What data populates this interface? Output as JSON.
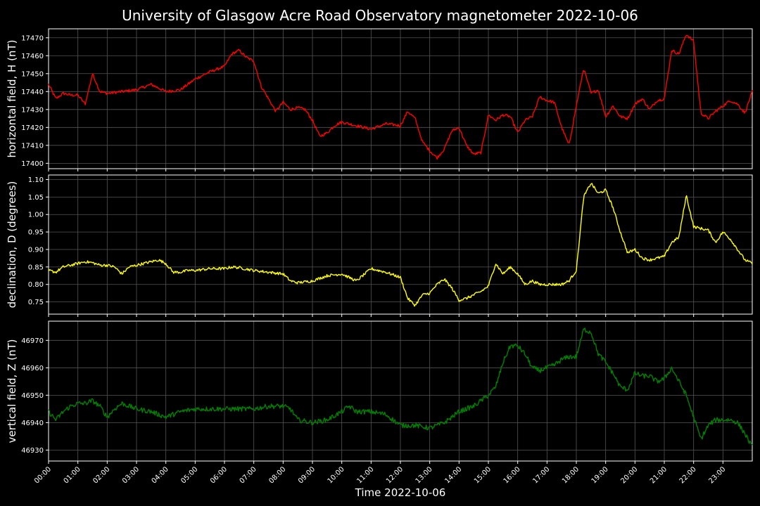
{
  "chart_data": {
    "type": "line",
    "title": "University of Glasgow Acre Road Observatory magnetometer 2022-10-06",
    "xlabel": "Time 2022-10-06",
    "x_ticks": [
      "00:00",
      "01:00",
      "02:00",
      "03:00",
      "04:00",
      "05:00",
      "06:00",
      "07:00",
      "08:00",
      "09:00",
      "10:00",
      "11:00",
      "12:00",
      "13:00",
      "14:00",
      "15:00",
      "16:00",
      "17:00",
      "18:00",
      "19:00",
      "20:00",
      "21:00",
      "22:00",
      "23:00"
    ],
    "xlim_hours": [
      0,
      24
    ],
    "grid": true,
    "panels": [
      {
        "ylabel": "horizontal field, H (nT)",
        "color": "#ff0000",
        "ylim": [
          17397,
          17475
        ],
        "y_ticks": [
          17400,
          17410,
          17420,
          17430,
          17440,
          17450,
          17460,
          17470
        ],
        "noise": 0.8,
        "series": {
          "x_hours": [
            0,
            0.25,
            0.5,
            0.75,
            1.0,
            1.25,
            1.5,
            1.75,
            2.0,
            2.5,
            3.0,
            3.5,
            4.0,
            4.5,
            5.0,
            5.5,
            6.0,
            6.25,
            6.5,
            6.75,
            7.0,
            7.25,
            7.5,
            7.75,
            8.0,
            8.25,
            8.5,
            8.75,
            9.0,
            9.25,
            9.5,
            9.75,
            10.0,
            10.5,
            11.0,
            11.5,
            12.0,
            12.25,
            12.5,
            12.75,
            13.0,
            13.25,
            13.5,
            13.75,
            14.0,
            14.25,
            14.5,
            14.75,
            15.0,
            15.25,
            15.5,
            15.75,
            16.0,
            16.25,
            16.5,
            16.75,
            17.0,
            17.25,
            17.5,
            17.75,
            18.0,
            18.25,
            18.5,
            18.75,
            19.0,
            19.25,
            19.5,
            19.75,
            20.0,
            20.25,
            20.5,
            20.75,
            21.0,
            21.25,
            21.5,
            21.75,
            22.0,
            22.25,
            22.5,
            22.75,
            23.0,
            23.25,
            23.5,
            23.75,
            24.0
          ],
          "values": [
            17444,
            17436,
            17439,
            17438,
            17438,
            17433,
            17450,
            17440,
            17439,
            17440,
            17441,
            17444,
            17440,
            17441,
            17447,
            17451,
            17454,
            17461,
            17463,
            17459,
            17457,
            17443,
            17436,
            17429,
            17434,
            17430,
            17431,
            17430,
            17424,
            17415,
            17417,
            17421,
            17423,
            17421,
            17419,
            17422,
            17421,
            17429,
            17425,
            17412,
            17407,
            17403,
            17408,
            17418,
            17420,
            17410,
            17405,
            17406,
            17427,
            17424,
            17427,
            17426,
            17417,
            17424,
            17426,
            17437,
            17435,
            17434,
            17420,
            17410,
            17432,
            17453,
            17439,
            17441,
            17426,
            17432,
            17426,
            17425,
            17433,
            17436,
            17430,
            17435,
            17436,
            17463,
            17461,
            17472,
            17468,
            17428,
            17425,
            17429,
            17432,
            17435,
            17433,
            17428,
            17440
          ]
        }
      },
      {
        "ylabel": "declination, D (degrees)",
        "color": "#ffff00",
        "ylim": [
          0.715,
          1.113
        ],
        "y_ticks": [
          "0.75",
          "0.80",
          "0.85",
          "0.90",
          "0.95",
          "1.00",
          "1.05",
          "1.10"
        ],
        "noise": 0.004,
        "series": {
          "x_hours": [
            0,
            0.25,
            0.5,
            0.75,
            1.0,
            1.25,
            1.5,
            1.75,
            2.0,
            2.25,
            2.5,
            2.75,
            3.0,
            3.25,
            3.5,
            3.75,
            4.0,
            4.25,
            4.5,
            4.75,
            5.0,
            5.5,
            6.0,
            6.25,
            6.5,
            7.0,
            7.5,
            8.0,
            8.25,
            8.5,
            9.0,
            9.5,
            10.0,
            10.5,
            11.0,
            11.25,
            11.5,
            12.0,
            12.25,
            12.5,
            12.75,
            13.0,
            13.25,
            13.5,
            13.75,
            14.0,
            14.25,
            14.5,
            14.75,
            15.0,
            15.25,
            15.5,
            15.75,
            16.0,
            16.25,
            16.5,
            16.75,
            17.0,
            17.5,
            17.75,
            18.0,
            18.25,
            18.5,
            18.75,
            19.0,
            19.25,
            19.5,
            19.75,
            20.0,
            20.25,
            20.5,
            20.75,
            21.0,
            21.25,
            21.5,
            21.75,
            22.0,
            22.25,
            22.5,
            22.75,
            23.0,
            23.25,
            23.5,
            23.75,
            24.0
          ],
          "values": [
            0.84,
            0.835,
            0.85,
            0.855,
            0.86,
            0.865,
            0.862,
            0.855,
            0.855,
            0.85,
            0.83,
            0.85,
            0.855,
            0.86,
            0.865,
            0.87,
            0.86,
            0.835,
            0.835,
            0.84,
            0.84,
            0.845,
            0.845,
            0.85,
            0.848,
            0.84,
            0.835,
            0.83,
            0.81,
            0.805,
            0.81,
            0.825,
            0.83,
            0.81,
            0.845,
            0.84,
            0.835,
            0.82,
            0.76,
            0.74,
            0.77,
            0.775,
            0.8,
            0.815,
            0.79,
            0.755,
            0.76,
            0.77,
            0.78,
            0.795,
            0.86,
            0.83,
            0.85,
            0.83,
            0.8,
            0.81,
            0.8,
            0.8,
            0.8,
            0.81,
            0.84,
            1.05,
            1.09,
            1.06,
            1.07,
            1.02,
            0.95,
            0.89,
            0.9,
            0.875,
            0.87,
            0.875,
            0.88,
            0.92,
            0.935,
            1.055,
            0.965,
            0.96,
            0.955,
            0.92,
            0.95,
            0.93,
            0.9,
            0.87,
            0.86
          ]
        }
      },
      {
        "ylabel": "vertical field, Z (nT)",
        "color": "#008000",
        "ylim": [
          46926,
          46977
        ],
        "y_ticks": [
          46930,
          46940,
          46950,
          46960,
          46970
        ],
        "noise": 0.9,
        "series": {
          "x_hours": [
            0,
            0.25,
            0.5,
            0.75,
            1.0,
            1.25,
            1.5,
            1.75,
            2.0,
            2.25,
            2.5,
            2.75,
            3.0,
            3.5,
            4.0,
            4.25,
            4.5,
            5.0,
            5.5,
            6.0,
            6.5,
            7.0,
            7.5,
            8.0,
            8.25,
            8.5,
            9.0,
            9.5,
            10.0,
            10.25,
            10.5,
            11.0,
            11.5,
            12.0,
            12.5,
            13.0,
            13.5,
            14.0,
            14.5,
            15.0,
            15.25,
            15.5,
            15.75,
            16.0,
            16.25,
            16.5,
            16.75,
            17.0,
            17.25,
            17.5,
            17.75,
            18.0,
            18.25,
            18.5,
            18.75,
            19.0,
            19.25,
            19.5,
            19.75,
            20.0,
            20.25,
            20.5,
            20.75,
            21.0,
            21.25,
            21.5,
            21.75,
            22.0,
            22.25,
            22.5,
            22.75,
            23.0,
            23.25,
            23.5,
            23.75,
            24.0
          ],
          "values": [
            46944,
            46941,
            46944,
            46946,
            46947,
            46947,
            46948,
            46946,
            46942,
            46945,
            46947,
            46946,
            46945,
            46944,
            46942,
            46943,
            46944,
            46945,
            46945,
            46945,
            46945,
            46945,
            46946,
            46946,
            46945,
            46941,
            46940,
            46941,
            46944,
            46946,
            46944,
            46944,
            46943,
            46939,
            46939,
            46938,
            46940,
            46944,
            46946,
            46950,
            46953,
            46962,
            46968,
            46968,
            46965,
            46960,
            46959,
            46960,
            46961,
            46963,
            46964,
            46964,
            46974,
            46973,
            46965,
            46962,
            46958,
            46953,
            46952,
            46958,
            46957,
            46957,
            46955,
            46956,
            46960,
            46955,
            46950,
            46942,
            46934,
            46939,
            46941,
            46941,
            46941,
            46940,
            46936,
            46931
          ]
        }
      }
    ]
  }
}
